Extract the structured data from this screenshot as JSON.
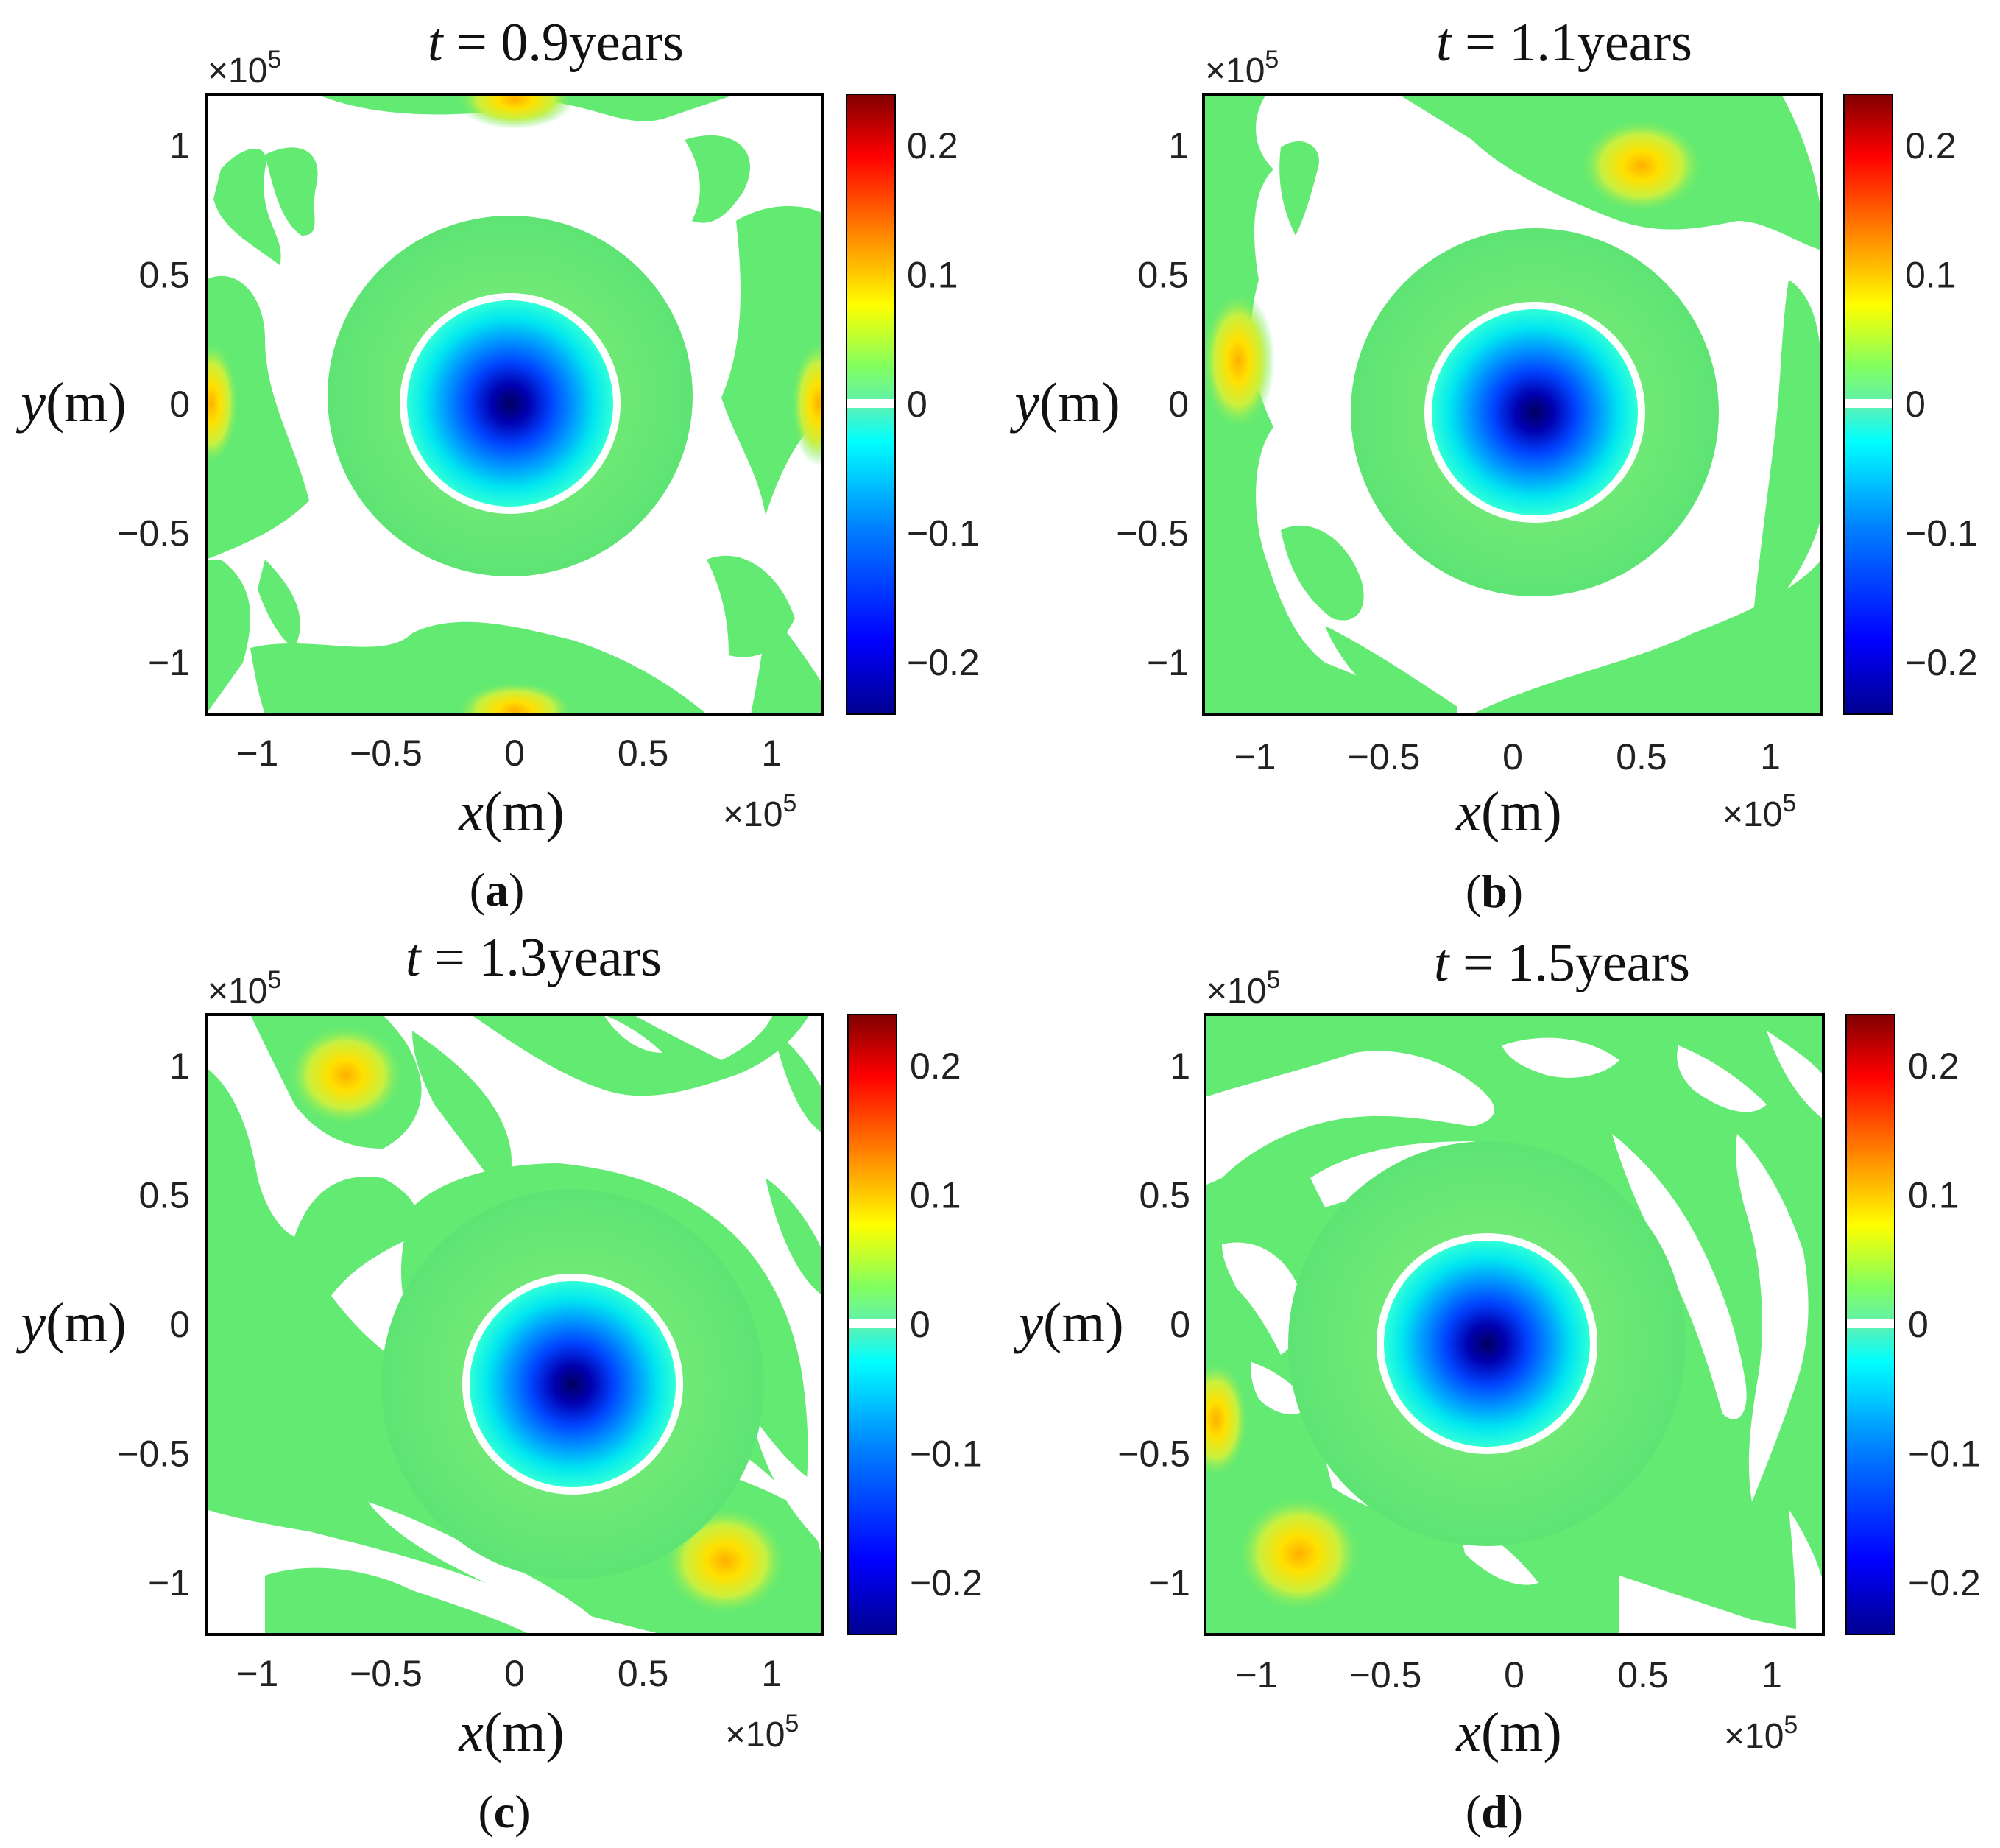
{
  "colors": {
    "cmap": [
      "#00008f",
      "#0000ff",
      "#0080ff",
      "#00ffff",
      "#80ff80",
      "#ffff00",
      "#ff8000",
      "#ff0000",
      "#800000"
    ],
    "band_green": "#62ea72",
    "background": "#ffffff"
  },
  "chart_data": [
    {
      "panel": "a",
      "type": "heatmap",
      "title": "t = 0.9years",
      "title_var": "t",
      "title_rest": " = 0.9years",
      "caption_letter": "a",
      "xlabel_var": "x",
      "xlabel_unit": "(m)",
      "ylabel_var": "y",
      "ylabel_unit": "(m)",
      "x_multiplier": "×10",
      "x_multiplier_exp": "5",
      "y_multiplier": "×10",
      "y_multiplier_exp": "5",
      "xlim": [
        -1.2,
        1.2
      ],
      "ylim": [
        -1.2,
        1.2
      ],
      "xticks": [
        -1,
        -0.5,
        0,
        0.5,
        1
      ],
      "xtick_labels": [
        "−1",
        "−0.5",
        "0",
        "0.5",
        "1"
      ],
      "yticks": [
        1,
        0.5,
        0,
        -0.5,
        -1
      ],
      "ytick_labels": [
        "1",
        "0.5",
        "0",
        "−0.5",
        "−1"
      ],
      "colorbar": {
        "range": [
          -0.24,
          0.24
        ],
        "ticks": [
          0.2,
          0.1,
          0,
          -0.1,
          -0.2
        ],
        "tick_labels": [
          "0.2",
          "0.1",
          "0",
          "−0.1",
          "−0.2"
        ]
      },
      "center_vortex": {
        "x": 0.0,
        "y": 0.0,
        "min_value": -0.24,
        "radius": 0.37
      },
      "positive_anomalies": [
        {
          "x": 0.0,
          "y": 1.18,
          "value": 0.06
        },
        {
          "x": 0.0,
          "y": -1.18,
          "value": 0.06
        },
        {
          "x": -1.18,
          "y": 0.0,
          "value": 0.06
        },
        {
          "x": 1.18,
          "y": 0.0,
          "value": 0.06
        }
      ]
    },
    {
      "panel": "b",
      "type": "heatmap",
      "title": "t = 1.1years",
      "title_var": "t",
      "title_rest": " = 1.1years",
      "caption_letter": "b",
      "xlabel_var": "x",
      "xlabel_unit": "(m)",
      "ylabel_var": "y",
      "ylabel_unit": "(m)",
      "x_multiplier": "×10",
      "x_multiplier_exp": "5",
      "y_multiplier": "×10",
      "y_multiplier_exp": "5",
      "xlim": [
        -1.2,
        1.2
      ],
      "ylim": [
        -1.2,
        1.2
      ],
      "xticks": [
        -1,
        -0.5,
        0,
        0.5,
        1
      ],
      "xtick_labels": [
        "−1",
        "−0.5",
        "0",
        "0.5",
        "1"
      ],
      "yticks": [
        1,
        0.5,
        0,
        -0.5,
        -1
      ],
      "ytick_labels": [
        "1",
        "0.5",
        "0",
        "−0.5",
        "−1"
      ],
      "colorbar": {
        "range": [
          -0.24,
          0.24
        ],
        "ticks": [
          0.2,
          0.1,
          0,
          -0.1,
          -0.2
        ],
        "tick_labels": [
          "0.2",
          "0.1",
          "0",
          "−0.1",
          "−0.2"
        ]
      },
      "center_vortex": {
        "x": 0.1,
        "y": 0.0,
        "min_value": -0.24,
        "radius": 0.37
      },
      "positive_anomalies": [
        {
          "x": 0.5,
          "y": 0.92,
          "value": 0.08
        },
        {
          "x": -1.05,
          "y": 0.17,
          "value": 0.08
        }
      ]
    },
    {
      "panel": "c",
      "type": "heatmap",
      "title": "t = 1.3years",
      "title_var": "t",
      "title_rest": " = 1.3years",
      "caption_letter": "c",
      "xlabel_var": "x",
      "xlabel_unit": "(m)",
      "ylabel_var": "y",
      "ylabel_unit": "(m)",
      "x_multiplier": "×10",
      "x_multiplier_exp": "5",
      "y_multiplier": "×10",
      "y_multiplier_exp": "5",
      "xlim": [
        -1.2,
        1.2
      ],
      "ylim": [
        -1.2,
        1.2
      ],
      "xticks": [
        -1,
        -0.5,
        0,
        0.5,
        1
      ],
      "xtick_labels": [
        "−1",
        "−0.5",
        "0",
        "0.5",
        "1"
      ],
      "yticks": [
        1,
        0.5,
        0,
        -0.5,
        -1
      ],
      "ytick_labels": [
        "1",
        "0.5",
        "0",
        "−0.5",
        "−1"
      ],
      "colorbar": {
        "range": [
          -0.24,
          0.24
        ],
        "ticks": [
          0.2,
          0.1,
          0,
          -0.1,
          -0.2
        ],
        "tick_labels": [
          "0.2",
          "0.1",
          "0",
          "−0.1",
          "−0.2"
        ]
      },
      "center_vortex": {
        "x": 0.22,
        "y": -0.25,
        "min_value": -0.24,
        "radius": 0.37
      },
      "positive_anomalies": [
        {
          "x": -0.62,
          "y": 0.95,
          "value": 0.09
        },
        {
          "x": 0.82,
          "y": -0.88,
          "value": 0.09
        }
      ]
    },
    {
      "panel": "d",
      "type": "heatmap",
      "title": "t = 1.5years",
      "title_var": "t",
      "title_rest": " = 1.5years",
      "caption_letter": "d",
      "xlabel_var": "x",
      "xlabel_unit": "(m)",
      "ylabel_var": "y",
      "ylabel_unit": "(m)",
      "x_multiplier": "×10",
      "x_multiplier_exp": "5",
      "y_multiplier": "×10",
      "y_multiplier_exp": "5",
      "xlim": [
        -1.2,
        1.2
      ],
      "ylim": [
        -1.2,
        1.2
      ],
      "xticks": [
        -1,
        -0.5,
        0,
        0.5,
        1
      ],
      "xtick_labels": [
        "−1",
        "−0.5",
        "0",
        "0.5",
        "1"
      ],
      "yticks": [
        1,
        0.5,
        0,
        -0.5,
        -1
      ],
      "ytick_labels": [
        "1",
        "0.5",
        "0",
        "−0.5",
        "−1"
      ],
      "colorbar": {
        "range": [
          -0.24,
          0.24
        ],
        "ticks": [
          0.2,
          0.1,
          0,
          -0.1,
          -0.2
        ],
        "tick_labels": [
          "0.2",
          "0.1",
          "0",
          "−0.1",
          "−0.2"
        ]
      },
      "center_vortex": {
        "x": -0.12,
        "y": -0.05,
        "min_value": -0.24,
        "radius": 0.37
      },
      "positive_anomalies": [
        {
          "x": -1.15,
          "y": -0.35,
          "value": 0.08
        },
        {
          "x": -0.82,
          "y": -0.88,
          "value": 0.08
        }
      ]
    }
  ]
}
